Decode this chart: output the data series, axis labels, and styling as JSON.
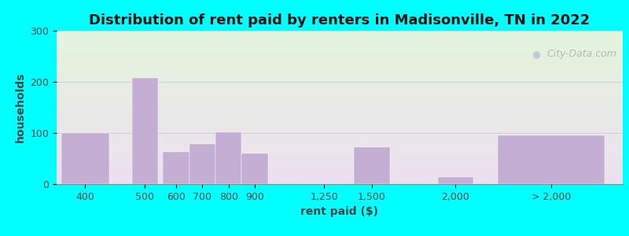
{
  "title": "Distribution of rent paid by renters in Madisonville, TN in 2022",
  "xlabel": "rent paid ($)",
  "ylabel": "households",
  "bar_color": "#c4aed4",
  "background_outer": "#00FFFF",
  "background_top": "#e4f5dc",
  "background_bottom": "#ece0f0",
  "categories": [
    "400",
    "500",
    "600",
    "700",
    "800",
    "900",
    "1,250",
    "1,500",
    "2,000",
    "> 2,000"
  ],
  "values": [
    100,
    208,
    63,
    78,
    101,
    60,
    0,
    72,
    14,
    95
  ],
  "ylim": [
    0,
    300
  ],
  "yticks": [
    0,
    100,
    200,
    300
  ],
  "title_fontsize": 13,
  "axis_label_fontsize": 10,
  "tick_fontsize": 9,
  "watermark_text": "City-Data.com",
  "x_positions": [
    1.0,
    3.5,
    4.8,
    5.9,
    7.0,
    8.1,
    11.0,
    13.0,
    16.5,
    20.5
  ],
  "bar_widths": [
    2.0,
    1.1,
    1.1,
    1.1,
    1.1,
    1.1,
    1.3,
    1.5,
    1.5,
    4.5
  ],
  "xlim": [
    -0.2,
    23.5
  ]
}
